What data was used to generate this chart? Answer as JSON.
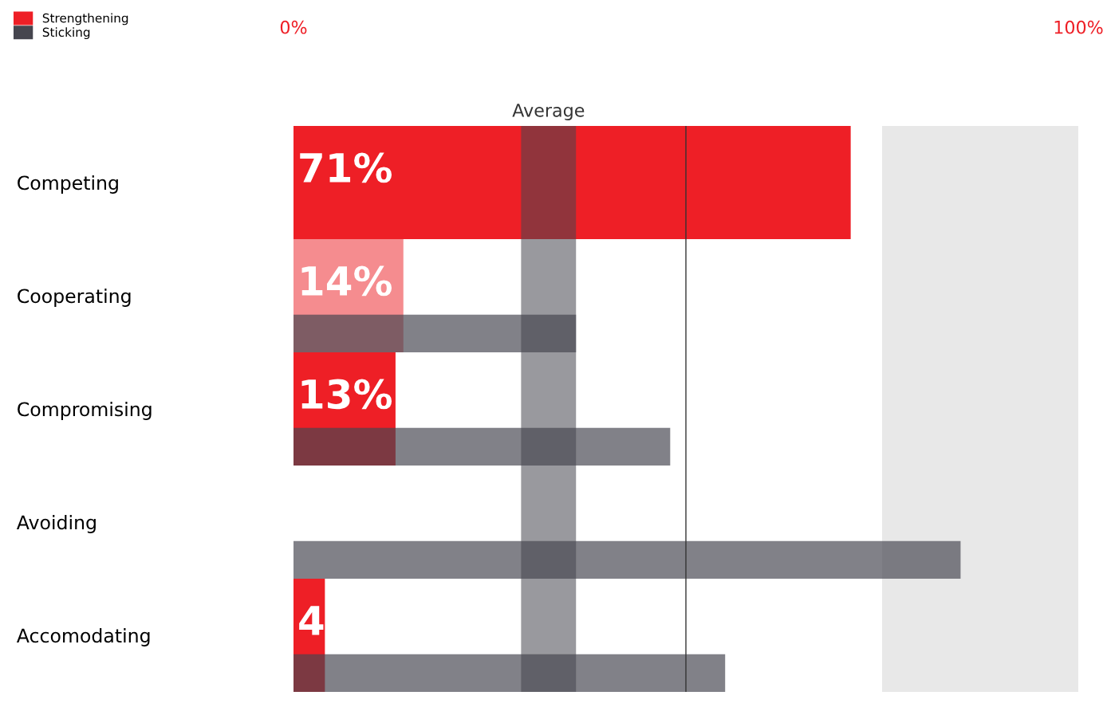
{
  "chart_data": {
    "type": "bar",
    "orientation": "horizontal",
    "categories": [
      "Competing",
      "Cooperating",
      "Compromising",
      "Avoiding",
      "Accomodating"
    ],
    "series": [
      {
        "name": "Strengthening",
        "color": "#ee1f26",
        "colors": [
          "#ee1f26",
          "#f58c8f",
          "#ee1f26",
          "#ee1f26",
          "#ee1f26"
        ],
        "values": [
          71,
          14,
          13,
          0,
          4
        ],
        "value_labels": [
          "71%",
          "14%",
          "13%",
          null,
          "4"
        ]
      },
      {
        "name": "Sticking",
        "color": "#46464f",
        "values": [
          null,
          36,
          48,
          85,
          55
        ]
      }
    ],
    "xlim": [
      0,
      100
    ],
    "xticks": [
      {
        "value": 0,
        "label": "0%"
      },
      {
        "value": 100,
        "label": "100%"
      }
    ],
    "bands": [
      {
        "axis": "x",
        "from": 29,
        "to": 36,
        "label": "Average",
        "color": "#46464f"
      },
      {
        "axis": "x",
        "from": 75,
        "to": 100,
        "color": "#e8e8e8"
      }
    ],
    "ref_lines": [
      {
        "axis": "x",
        "value": 50,
        "color": "#333333",
        "line_style": "solid"
      }
    ],
    "legend": "top left",
    "grid": false
  }
}
